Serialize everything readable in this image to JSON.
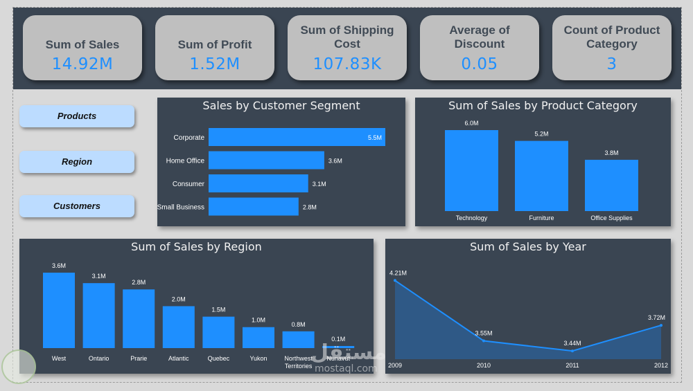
{
  "kpis": [
    {
      "label": "Sum of Sales",
      "value": "14.92M"
    },
    {
      "label": "Sum of Profit",
      "value": "1.52M"
    },
    {
      "label": "Sum of Shipping Cost",
      "value": "107.83K"
    },
    {
      "label": "Average of Discount",
      "value": "0.05"
    },
    {
      "label": "Count of Product Category",
      "value": "3"
    }
  ],
  "nav": {
    "products": "Products",
    "region": "Region",
    "customers": "Customers"
  },
  "colors": {
    "bar": "#1e8fff",
    "panel": "#3a4552",
    "area": "#2e5d8f",
    "line": "#1e8fff"
  },
  "watermark": {
    "arabic": "مستقل",
    "url": "mostaql.com"
  },
  "chart_data": [
    {
      "id": "segment",
      "type": "bar",
      "orientation": "horizontal",
      "title": "Sales by Customer Segment",
      "categories": [
        "Corporate",
        "Home Office",
        "Consumer",
        "Small Business"
      ],
      "values": [
        5.5,
        3.6,
        3.1,
        2.8
      ],
      "labels": [
        "5.5M",
        "3.6M",
        "3.1M",
        "2.8M"
      ],
      "xlim": [
        0,
        5.5
      ]
    },
    {
      "id": "category",
      "type": "bar",
      "title": "Sum of Sales by Product Category",
      "categories": [
        "Technology",
        "Furniture",
        "Office Supplies"
      ],
      "values": [
        6.0,
        5.2,
        3.8
      ],
      "labels": [
        "6.0M",
        "5.2M",
        "3.8M"
      ],
      "ylim": [
        0,
        6.0
      ]
    },
    {
      "id": "region",
      "type": "bar",
      "title": "Sum of Sales by Region",
      "categories": [
        "West",
        "Ontario",
        "Prarie",
        "Atlantic",
        "Quebec",
        "Yukon",
        "Northwest Territories",
        "Nunavut"
      ],
      "values": [
        3.6,
        3.1,
        2.8,
        2.0,
        1.5,
        1.0,
        0.8,
        0.1
      ],
      "labels": [
        "3.6M",
        "3.1M",
        "2.8M",
        "2.0M",
        "1.5M",
        "1.0M",
        "0.8M",
        "0.1M"
      ],
      "ylim": [
        0,
        3.6
      ]
    },
    {
      "id": "year",
      "type": "area",
      "title": "Sum of Sales by Year",
      "x": [
        "2009",
        "2010",
        "2011",
        "2012"
      ],
      "values": [
        4.21,
        3.55,
        3.44,
        3.72
      ],
      "labels": [
        "4.21M",
        "3.55M",
        "3.44M",
        "3.72M"
      ],
      "ylim": [
        3.35,
        4.25
      ]
    }
  ]
}
